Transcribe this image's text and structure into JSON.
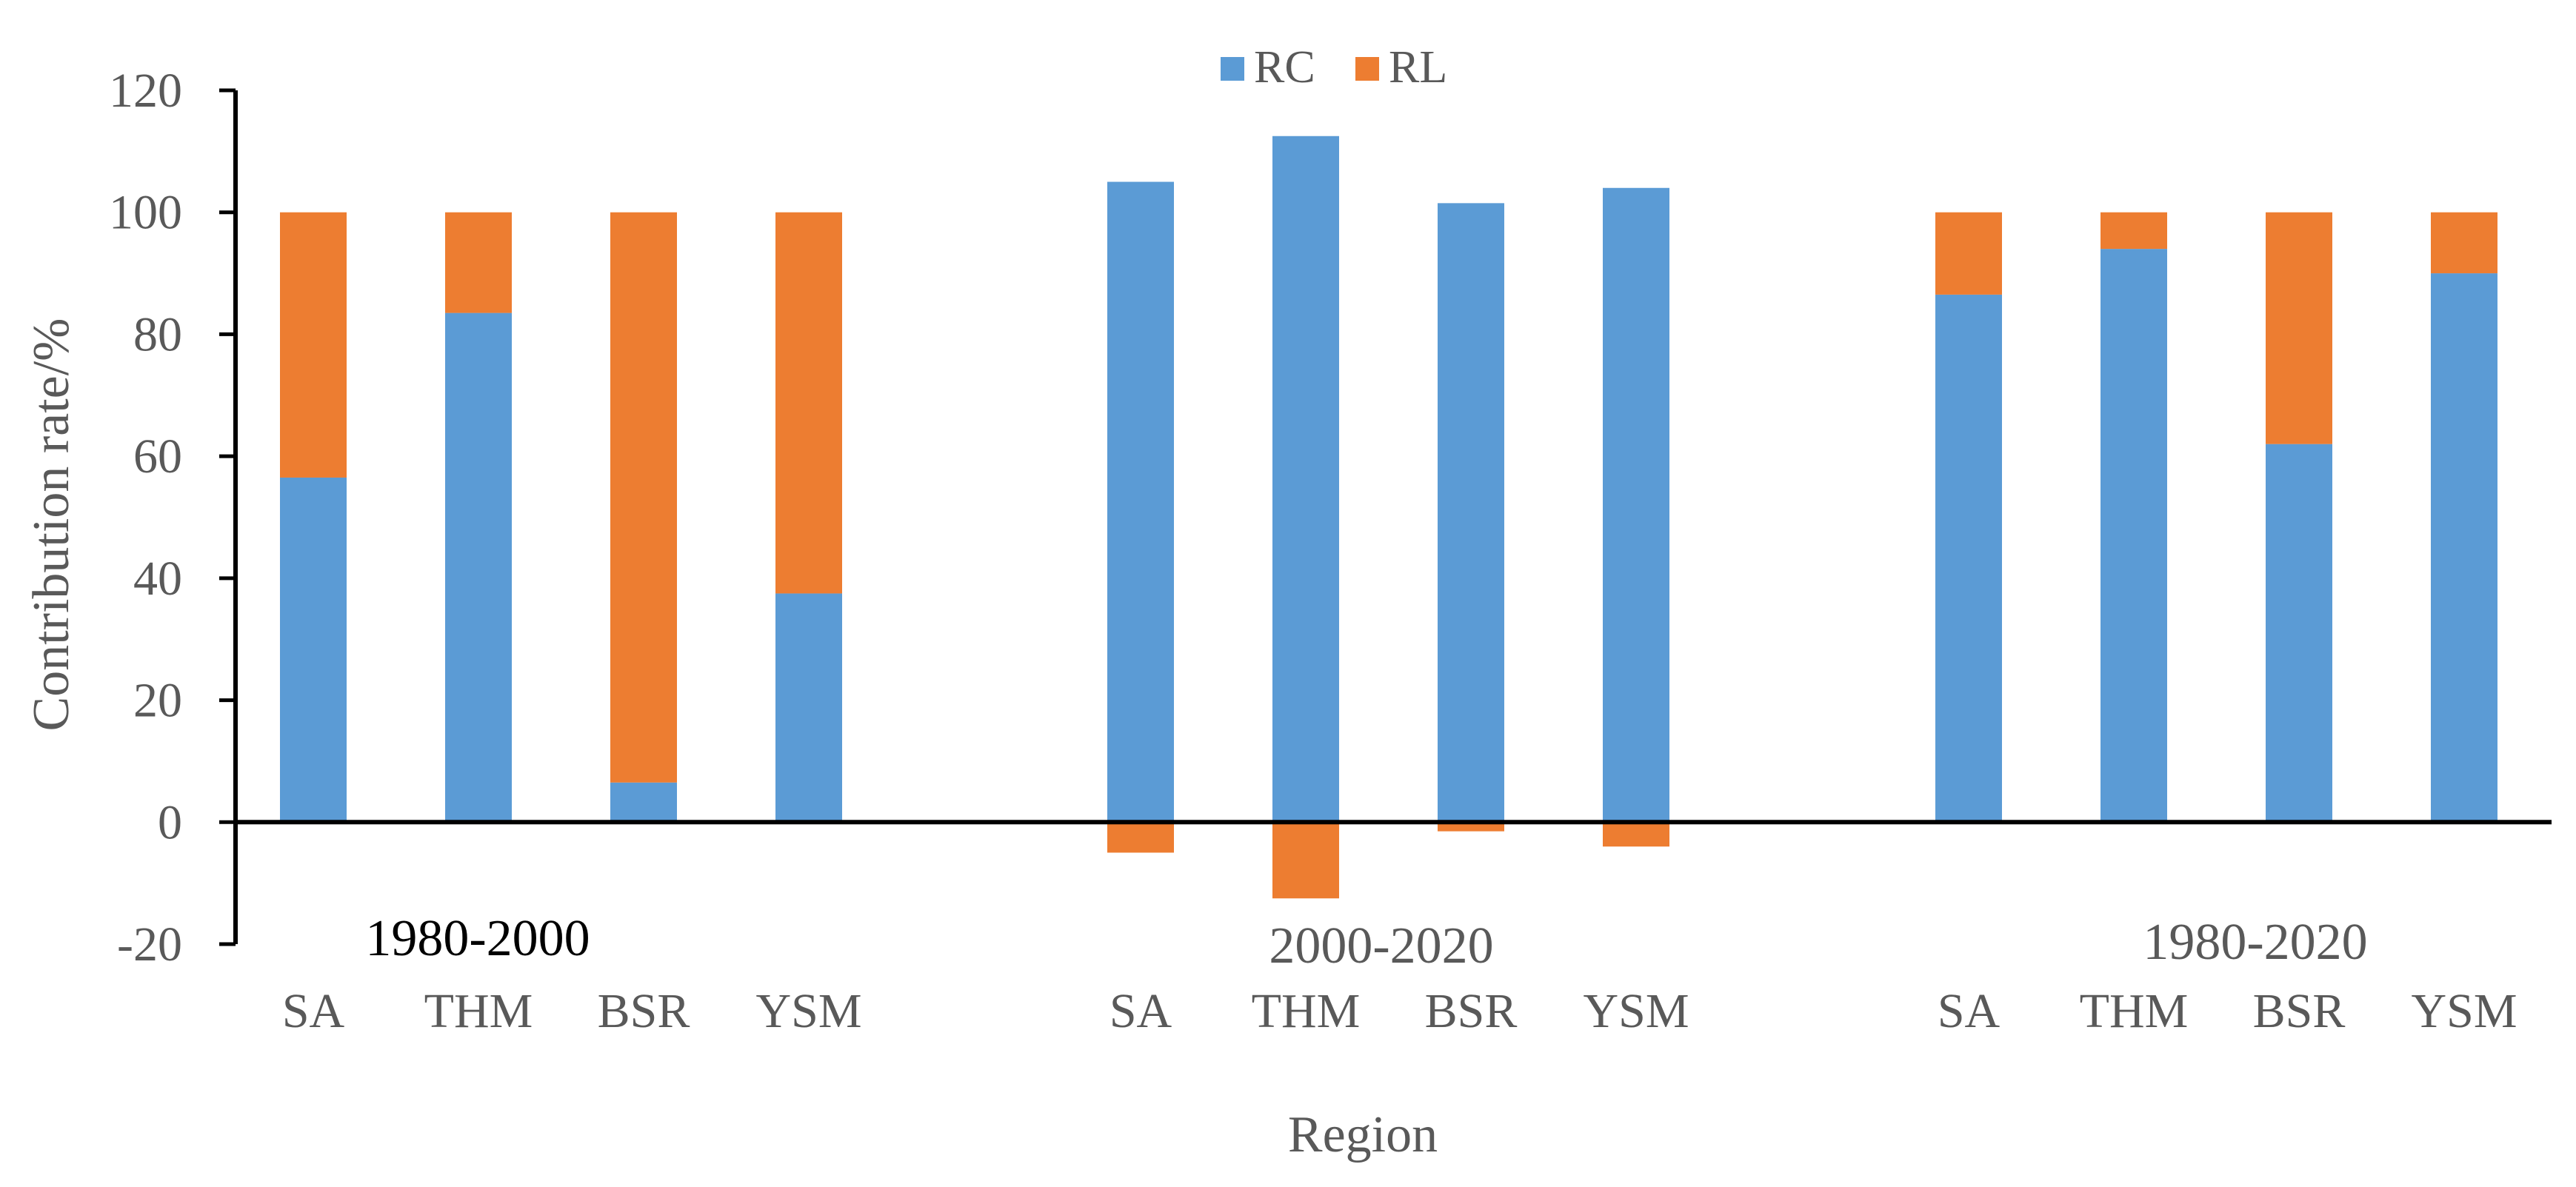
{
  "chart_data": {
    "type": "bar",
    "stacked": true,
    "title": "",
    "xlabel": "Region",
    "ylabel": "Contribution rate/%",
    "ylim": [
      -20,
      120
    ],
    "yticks": [
      -20,
      0,
      20,
      40,
      60,
      80,
      100,
      120
    ],
    "grid": false,
    "legend_position": "top-center",
    "colors": {
      "RC": "#5B9BD5",
      "RL": "#ED7D31",
      "period_first": "#000000",
      "period_other": "#595959"
    },
    "groups": [
      {
        "period": "1980-2000",
        "categories": [
          "SA",
          "THM",
          "BSR",
          "YSM"
        ]
      },
      {
        "period": "2000-2020",
        "categories": [
          "SA",
          "THM",
          "BSR",
          "YSM"
        ]
      },
      {
        "period": "1980-2020",
        "categories": [
          "SA",
          "THM",
          "BSR",
          "YSM"
        ]
      }
    ],
    "series": [
      {
        "name": "RC",
        "values": [
          56.5,
          83.5,
          6.5,
          37.5,
          105,
          112.5,
          101.5,
          104,
          86.5,
          94,
          62,
          90
        ]
      },
      {
        "name": "RL",
        "values": [
          43.5,
          16.5,
          93.5,
          62.5,
          -5,
          -12.5,
          -1.5,
          -4,
          13.5,
          6,
          38,
          10
        ]
      }
    ]
  }
}
